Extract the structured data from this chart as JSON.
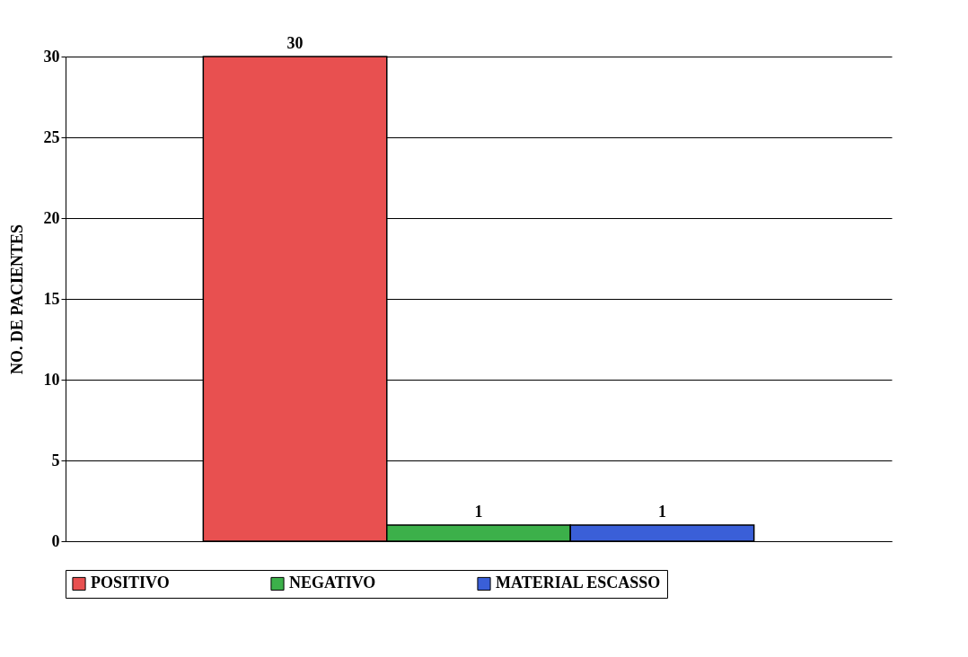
{
  "chart_data": {
    "type": "bar",
    "ylabel": "NO. DE PACIENTES",
    "categories": [
      null
    ],
    "series": [
      {
        "name": "POSITIVO",
        "color": "#e85050",
        "values": [
          30
        ]
      },
      {
        "name": "NEGATIVO",
        "color": "#3cb04a",
        "values": [
          1
        ]
      },
      {
        "name": "MATERIAL ESCASSO",
        "color": "#3a5fd8",
        "values": [
          1
        ]
      }
    ],
    "ylim": [
      0,
      30
    ],
    "yticks": [
      0,
      5,
      10,
      15,
      20,
      25,
      30
    ],
    "grid": "y",
    "legend": "bottom",
    "data_labels": true
  }
}
